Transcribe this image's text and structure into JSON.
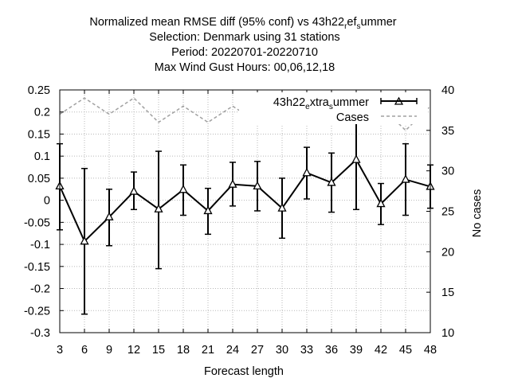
{
  "title_lines": [
    "Normalized mean RMSE diff (95% conf) vs 43h22_ref_summer",
    "Selection: Denmark using    31 stations",
    "Period: 20220701-20220710",
    "Max Wind Gust   Hours:  00,06,12,18"
  ],
  "chart_data": {
    "type": "line",
    "xlabel": "Forecast length",
    "ylabel": "",
    "y2label": "No cases",
    "x": [
      3,
      6,
      9,
      12,
      15,
      18,
      21,
      24,
      27,
      30,
      33,
      36,
      39,
      42,
      45,
      48
    ],
    "xlim": [
      3,
      48
    ],
    "ylim": [
      -0.3,
      0.25
    ],
    "y2lim": [
      10,
      40
    ],
    "x_ticks": [
      "3",
      "6",
      "9",
      "12",
      "15",
      "18",
      "21",
      "24",
      "27",
      "30",
      "33",
      "36",
      "39",
      "42",
      "45",
      "48"
    ],
    "y_ticks": [
      "-0.3",
      "-0.25",
      "-0.2",
      "-0.15",
      "-0.1",
      "-0.05",
      "0",
      "0.05",
      "0.1",
      "0.15",
      "0.2",
      "0.25"
    ],
    "y2_ticks": [
      "10",
      "15",
      "20",
      "25",
      "30",
      "35",
      "40"
    ],
    "grid": true,
    "legend_position": "top-right",
    "series": [
      {
        "name": "43h22_extra_summer",
        "axis": "left",
        "color": "#000000",
        "marker": "triangle",
        "values": [
          0.032,
          -0.093,
          -0.038,
          0.02,
          -0.02,
          0.024,
          -0.024,
          0.036,
          0.032,
          -0.018,
          0.062,
          0.04,
          0.092,
          -0.008,
          0.047,
          0.031
        ],
        "err_low": [
          -0.067,
          -0.258,
          -0.103,
          -0.021,
          -0.155,
          -0.034,
          -0.077,
          -0.013,
          -0.024,
          -0.086,
          0.003,
          -0.027,
          -0.021,
          -0.055,
          -0.034,
          -0.018
        ],
        "err_high": [
          0.128,
          0.072,
          0.025,
          0.064,
          0.111,
          0.08,
          0.027,
          0.086,
          0.088,
          0.05,
          0.12,
          0.107,
          0.205,
          0.038,
          0.128,
          0.08
        ]
      },
      {
        "name": "Cases",
        "axis": "right",
        "color": "#a0a0a0",
        "dashed": true,
        "values": [
          37,
          39,
          37,
          39,
          36,
          38,
          36,
          38,
          36,
          38,
          37,
          38,
          36,
          38,
          35,
          38
        ]
      }
    ]
  }
}
